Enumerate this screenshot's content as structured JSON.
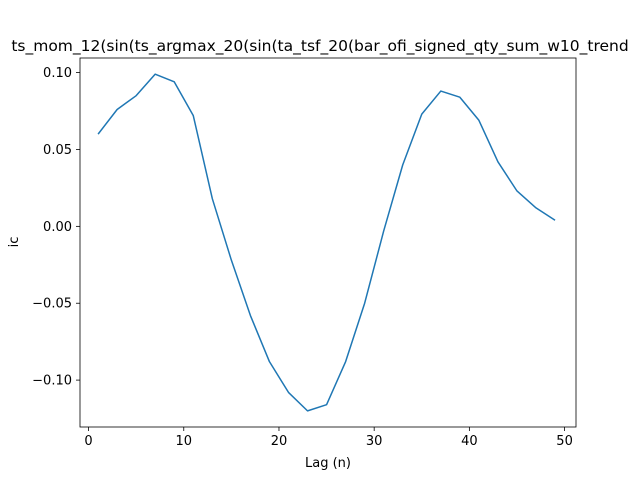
{
  "chart_data": {
    "type": "line",
    "title": "ts_mom_12(sin(ts_argmax_20(sin(ta_tsf_20(bar_ofi_signed_qty_sum_w10_trend",
    "xlabel": "Lag (n)",
    "ylabel": "ic",
    "xlim": [
      -0.9,
      51.2
    ],
    "ylim": [
      -0.1305,
      0.1095
    ],
    "x_ticks": [
      0,
      10,
      20,
      30,
      40,
      50
    ],
    "y_ticks": [
      -0.1,
      -0.05,
      0.0,
      0.05,
      0.1
    ],
    "x_tick_labels": [
      "0",
      "10",
      "20",
      "30",
      "40",
      "50"
    ],
    "y_tick_labels": [
      "−0.10",
      "−0.05",
      "0.00",
      "0.05",
      "0.10"
    ],
    "grid": false,
    "line_color": "#1f77b4",
    "series": [
      {
        "x": [
          1,
          3,
          5,
          7,
          9,
          11,
          13,
          15,
          17,
          19,
          21,
          23,
          25,
          27,
          29,
          31,
          33,
          35,
          37,
          39,
          41,
          43,
          45,
          47,
          49
        ],
        "y": [
          0.06,
          0.076,
          0.085,
          0.099,
          0.094,
          0.072,
          0.018,
          -0.022,
          -0.058,
          -0.088,
          -0.108,
          -0.12,
          -0.116,
          -0.088,
          -0.05,
          -0.003,
          0.04,
          0.073,
          0.088,
          0.084,
          0.069,
          0.042,
          0.023,
          0.012,
          0.004
        ]
      }
    ]
  }
}
